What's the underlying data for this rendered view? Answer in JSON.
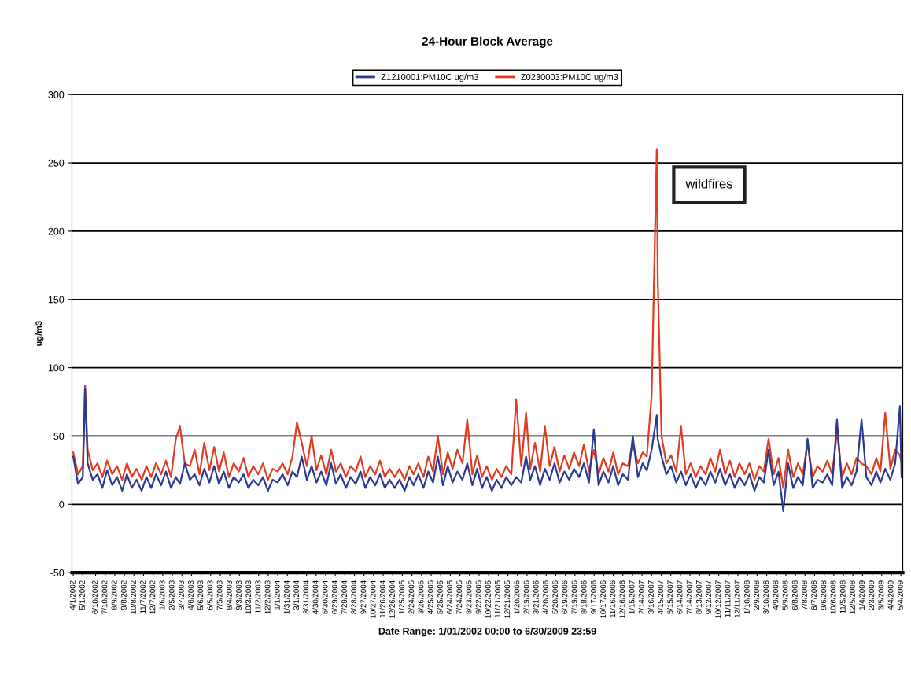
{
  "chart_data": {
    "type": "line",
    "title": "24-Hour Block Average",
    "xlabel": "Date Range: 1/01/2002 00:00 to 6/30/2009 23:59",
    "ylabel": "ug/m3",
    "annotations": [
      "wildfires"
    ],
    "x": [
      "2002-04-01",
      "2002-04-16",
      "2002-05-01",
      "2002-05-08",
      "2002-05-16",
      "2002-06-01",
      "2002-06-16",
      "2002-07-01",
      "2002-07-16",
      "2002-08-01",
      "2002-08-16",
      "2002-09-01",
      "2002-09-16",
      "2002-10-01",
      "2002-10-16",
      "2002-11-01",
      "2002-11-16",
      "2002-12-01",
      "2002-12-16",
      "2003-01-01",
      "2003-01-16",
      "2003-02-01",
      "2003-02-16",
      "2003-03-01",
      "2003-03-16",
      "2003-04-01",
      "2003-04-16",
      "2003-05-01",
      "2003-05-16",
      "2003-06-01",
      "2003-06-16",
      "2003-07-01",
      "2003-07-16",
      "2003-08-01",
      "2003-08-16",
      "2003-09-01",
      "2003-09-16",
      "2003-10-01",
      "2003-10-16",
      "2003-11-01",
      "2003-11-16",
      "2003-12-01",
      "2003-12-16",
      "2004-01-01",
      "2004-01-16",
      "2004-02-01",
      "2004-02-16",
      "2004-03-01",
      "2004-03-16",
      "2004-04-01",
      "2004-04-16",
      "2004-05-01",
      "2004-05-16",
      "2004-06-01",
      "2004-06-16",
      "2004-07-01",
      "2004-07-16",
      "2004-08-01",
      "2004-08-16",
      "2004-09-01",
      "2004-09-16",
      "2004-10-01",
      "2004-10-16",
      "2004-11-01",
      "2004-11-16",
      "2004-12-01",
      "2004-12-16",
      "2005-01-01",
      "2005-01-16",
      "2005-02-01",
      "2005-02-16",
      "2005-03-01",
      "2005-03-16",
      "2005-04-01",
      "2005-04-16",
      "2005-05-01",
      "2005-05-16",
      "2005-06-01",
      "2005-06-16",
      "2005-07-01",
      "2005-07-16",
      "2005-08-01",
      "2005-08-16",
      "2005-09-01",
      "2005-09-16",
      "2005-10-01",
      "2005-10-16",
      "2005-11-01",
      "2005-11-16",
      "2005-12-01",
      "2005-12-16",
      "2006-01-01",
      "2006-01-16",
      "2006-02-01",
      "2006-02-16",
      "2006-03-01",
      "2006-03-16",
      "2006-04-01",
      "2006-04-16",
      "2006-05-01",
      "2006-05-16",
      "2006-06-01",
      "2006-06-16",
      "2006-07-01",
      "2006-07-16",
      "2006-08-01",
      "2006-08-16",
      "2006-09-01",
      "2006-09-16",
      "2006-10-01",
      "2006-10-16",
      "2006-11-01",
      "2006-11-16",
      "2006-12-01",
      "2006-12-16",
      "2007-01-01",
      "2007-01-16",
      "2007-02-01",
      "2007-02-16",
      "2007-03-01",
      "2007-03-16",
      "2007-04-01",
      "2007-04-04",
      "2007-04-16",
      "2007-05-01",
      "2007-05-16",
      "2007-06-01",
      "2007-06-16",
      "2007-07-01",
      "2007-07-16",
      "2007-08-01",
      "2007-08-16",
      "2007-09-01",
      "2007-09-16",
      "2007-10-01",
      "2007-10-16",
      "2007-11-01",
      "2007-11-16",
      "2007-12-01",
      "2007-12-16",
      "2008-01-01",
      "2008-01-16",
      "2008-02-01",
      "2008-02-16",
      "2008-03-01",
      "2008-03-16",
      "2008-04-01",
      "2008-04-16",
      "2008-05-01",
      "2008-05-16",
      "2008-06-01",
      "2008-06-16",
      "2008-07-01",
      "2008-07-16",
      "2008-08-01",
      "2008-08-16",
      "2008-09-01",
      "2008-09-16",
      "2008-10-01",
      "2008-10-16",
      "2008-11-01",
      "2008-11-16",
      "2008-12-01",
      "2008-12-16",
      "2009-01-01",
      "2009-01-16",
      "2009-02-01",
      "2009-02-16",
      "2009-03-01",
      "2009-03-16",
      "2009-04-01",
      "2009-04-16",
      "2009-05-01",
      "2009-05-06"
    ],
    "series": [
      {
        "name": "Z1210001:PM10C ug/m3",
        "color": "#2b3990",
        "values": [
          35,
          15,
          20,
          85,
          30,
          18,
          22,
          12,
          25,
          14,
          20,
          10,
          22,
          12,
          18,
          10,
          20,
          12,
          22,
          14,
          24,
          12,
          20,
          15,
          30,
          18,
          22,
          14,
          26,
          16,
          28,
          15,
          24,
          12,
          20,
          16,
          22,
          12,
          18,
          14,
          20,
          10,
          18,
          16,
          22,
          14,
          24,
          20,
          35,
          18,
          28,
          16,
          24,
          14,
          30,
          15,
          22,
          12,
          20,
          15,
          24,
          12,
          20,
          14,
          22,
          12,
          18,
          12,
          18,
          10,
          20,
          14,
          22,
          12,
          24,
          16,
          35,
          14,
          28,
          16,
          24,
          18,
          30,
          14,
          26,
          12,
          20,
          10,
          18,
          12,
          20,
          14,
          20,
          16,
          35,
          18,
          28,
          14,
          26,
          18,
          30,
          16,
          24,
          18,
          26,
          20,
          30,
          16,
          55,
          14,
          24,
          16,
          28,
          14,
          22,
          18,
          50,
          20,
          30,
          25,
          40,
          65,
          48,
          35,
          22,
          28,
          16,
          24,
          14,
          22,
          12,
          20,
          14,
          24,
          16,
          26,
          14,
          22,
          12,
          20,
          14,
          22,
          10,
          20,
          16,
          40,
          14,
          24,
          -5,
          30,
          12,
          20,
          14,
          48,
          12,
          18,
          16,
          22,
          14,
          62,
          12,
          20,
          14,
          24,
          62,
          20,
          14,
          24,
          16,
          26,
          18,
          30,
          72,
          20
        ]
      },
      {
        "name": "Z0230003:PM10C ug/m3",
        "color": "#e03c1f",
        "values": [
          38,
          22,
          28,
          87,
          40,
          25,
          30,
          20,
          32,
          22,
          28,
          18,
          30,
          20,
          26,
          18,
          28,
          20,
          30,
          22,
          32,
          20,
          48,
          57,
          30,
          28,
          40,
          22,
          45,
          25,
          42,
          24,
          38,
          20,
          30,
          24,
          34,
          20,
          28,
          22,
          30,
          18,
          26,
          24,
          30,
          22,
          35,
          60,
          45,
          28,
          50,
          25,
          36,
          22,
          40,
          24,
          30,
          20,
          28,
          24,
          35,
          20,
          28,
          22,
          32,
          20,
          26,
          20,
          26,
          18,
          28,
          22,
          30,
          20,
          35,
          24,
          50,
          22,
          38,
          26,
          40,
          30,
          62,
          22,
          36,
          20,
          28,
          18,
          26,
          20,
          28,
          22,
          77,
          28,
          67,
          26,
          45,
          24,
          57,
          28,
          42,
          24,
          36,
          26,
          38,
          28,
          44,
          24,
          40,
          22,
          34,
          24,
          38,
          22,
          30,
          28,
          45,
          30,
          38,
          35,
          80,
          260,
          166,
          50,
          30,
          36,
          24,
          57,
          22,
          30,
          20,
          28,
          22,
          34,
          24,
          40,
          22,
          32,
          20,
          30,
          22,
          30,
          18,
          28,
          24,
          48,
          22,
          34,
          12,
          40,
          20,
          30,
          22,
          45,
          20,
          28,
          24,
          32,
          22,
          53,
          20,
          30,
          22,
          34,
          30,
          28,
          22,
          34,
          24,
          67,
          26,
          40,
          36,
          30
        ]
      }
    ],
    "xlim": [
      "2002-03-28",
      "2009-05-10"
    ],
    "xticks": [
      {
        "value": "2002-04-01",
        "label": "4/1/2002"
      },
      {
        "value": "2002-05-01",
        "label": "5/1/2002"
      },
      {
        "value": "2002-06-10",
        "label": "6/10/2002"
      },
      {
        "value": "2002-07-10",
        "label": "7/10/2002"
      },
      {
        "value": "2002-08-09",
        "label": "8/9/2002"
      },
      {
        "value": "2002-09-08",
        "label": "9/8/2002"
      },
      {
        "value": "2002-10-08",
        "label": "10/8/2002"
      },
      {
        "value": "2002-11-07",
        "label": "11/7/2002"
      },
      {
        "value": "2002-12-07",
        "label": "12/7/2002"
      },
      {
        "value": "2003-01-06",
        "label": "1/6/2003"
      },
      {
        "value": "2003-02-05",
        "label": "2/5/2003"
      },
      {
        "value": "2003-03-07",
        "label": "3/7/2003"
      },
      {
        "value": "2003-04-06",
        "label": "4/6/2003"
      },
      {
        "value": "2003-05-06",
        "label": "5/6/2003"
      },
      {
        "value": "2003-06-05",
        "label": "6/5/2003"
      },
      {
        "value": "2003-07-05",
        "label": "7/5/2003"
      },
      {
        "value": "2003-08-04",
        "label": "8/4/2003"
      },
      {
        "value": "2003-09-03",
        "label": "9/3/2003"
      },
      {
        "value": "2003-10-03",
        "label": "10/3/2003"
      },
      {
        "value": "2003-11-02",
        "label": "11/2/2003"
      },
      {
        "value": "2003-12-02",
        "label": "12/2/2003"
      },
      {
        "value": "2004-01-01",
        "label": "1/1/2004"
      },
      {
        "value": "2004-01-31",
        "label": "1/31/2004"
      },
      {
        "value": "2004-03-01",
        "label": "3/1/2004"
      },
      {
        "value": "2004-03-31",
        "label": "3/31/2004"
      },
      {
        "value": "2004-04-30",
        "label": "4/30/2004"
      },
      {
        "value": "2004-05-30",
        "label": "5/30/2004"
      },
      {
        "value": "2004-06-29",
        "label": "6/29/2004"
      },
      {
        "value": "2004-07-29",
        "label": "7/29/2004"
      },
      {
        "value": "2004-08-28",
        "label": "8/28/2004"
      },
      {
        "value": "2004-09-27",
        "label": "9/27/2004"
      },
      {
        "value": "2004-10-27",
        "label": "10/27/2004"
      },
      {
        "value": "2004-11-26",
        "label": "11/26/2004"
      },
      {
        "value": "2004-12-26",
        "label": "12/26/2004"
      },
      {
        "value": "2005-01-25",
        "label": "1/25/2005"
      },
      {
        "value": "2005-02-24",
        "label": "2/24/2005"
      },
      {
        "value": "2005-03-26",
        "label": "3/26/2005"
      },
      {
        "value": "2005-04-25",
        "label": "4/25/2005"
      },
      {
        "value": "2005-05-25",
        "label": "5/25/2005"
      },
      {
        "value": "2005-06-24",
        "label": "6/24/2005"
      },
      {
        "value": "2005-07-24",
        "label": "7/24/2005"
      },
      {
        "value": "2005-08-23",
        "label": "8/23/2005"
      },
      {
        "value": "2005-09-22",
        "label": "9/22/2005"
      },
      {
        "value": "2005-10-22",
        "label": "10/22/2005"
      },
      {
        "value": "2005-11-21",
        "label": "11/21/2005"
      },
      {
        "value": "2005-12-21",
        "label": "12/21/2005"
      },
      {
        "value": "2006-01-20",
        "label": "1/20/2006"
      },
      {
        "value": "2006-02-19",
        "label": "2/19/2006"
      },
      {
        "value": "2006-03-21",
        "label": "3/21/2006"
      },
      {
        "value": "2006-04-20",
        "label": "4/20/2006"
      },
      {
        "value": "2006-05-20",
        "label": "5/20/2006"
      },
      {
        "value": "2006-06-19",
        "label": "6/19/2006"
      },
      {
        "value": "2006-07-19",
        "label": "7/19/2006"
      },
      {
        "value": "2006-08-18",
        "label": "8/18/2006"
      },
      {
        "value": "2006-09-17",
        "label": "9/17/2006"
      },
      {
        "value": "2006-10-17",
        "label": "10/17/2006"
      },
      {
        "value": "2006-11-16",
        "label": "11/16/2006"
      },
      {
        "value": "2006-12-16",
        "label": "12/16/2006"
      },
      {
        "value": "2007-01-15",
        "label": "1/15/2007"
      },
      {
        "value": "2007-02-14",
        "label": "2/14/2007"
      },
      {
        "value": "2007-03-16",
        "label": "3/16/2007"
      },
      {
        "value": "2007-04-15",
        "label": "4/15/2007"
      },
      {
        "value": "2007-05-15",
        "label": "5/15/2007"
      },
      {
        "value": "2007-06-14",
        "label": "6/14/2007"
      },
      {
        "value": "2007-07-14",
        "label": "7/14/2007"
      },
      {
        "value": "2007-08-13",
        "label": "8/13/2007"
      },
      {
        "value": "2007-09-12",
        "label": "9/12/2007"
      },
      {
        "value": "2007-10-12",
        "label": "10/12/2007"
      },
      {
        "value": "2007-11-11",
        "label": "11/11/2007"
      },
      {
        "value": "2007-12-11",
        "label": "12/11/2007"
      },
      {
        "value": "2008-01-10",
        "label": "1/10/2008"
      },
      {
        "value": "2008-02-09",
        "label": "2/9/2008"
      },
      {
        "value": "2008-03-10",
        "label": "3/10/2008"
      },
      {
        "value": "2008-04-09",
        "label": "4/9/2008"
      },
      {
        "value": "2008-05-09",
        "label": "5/9/2008"
      },
      {
        "value": "2008-06-08",
        "label": "6/8/2008"
      },
      {
        "value": "2008-07-08",
        "label": "7/8/2008"
      },
      {
        "value": "2008-08-07",
        "label": "8/7/2008"
      },
      {
        "value": "2008-09-06",
        "label": "9/6/2008"
      },
      {
        "value": "2008-10-06",
        "label": "10/6/2008"
      },
      {
        "value": "2008-11-05",
        "label": "11/5/2008"
      },
      {
        "value": "2008-12-05",
        "label": "12/5/2008"
      },
      {
        "value": "2009-01-04",
        "label": "1/4/2009"
      },
      {
        "value": "2009-02-03",
        "label": "2/3/2009"
      },
      {
        "value": "2009-03-05",
        "label": "3/5/2009"
      },
      {
        "value": "2009-04-04",
        "label": "4/4/2009"
      },
      {
        "value": "2009-05-04",
        "label": "5/4/2009"
      }
    ],
    "ylim": [
      -50,
      300
    ],
    "yticks": [
      -50,
      0,
      50,
      100,
      150,
      200,
      250,
      300
    ],
    "grid": "y",
    "legend": "top",
    "marker": "none",
    "line_style": "solid"
  }
}
